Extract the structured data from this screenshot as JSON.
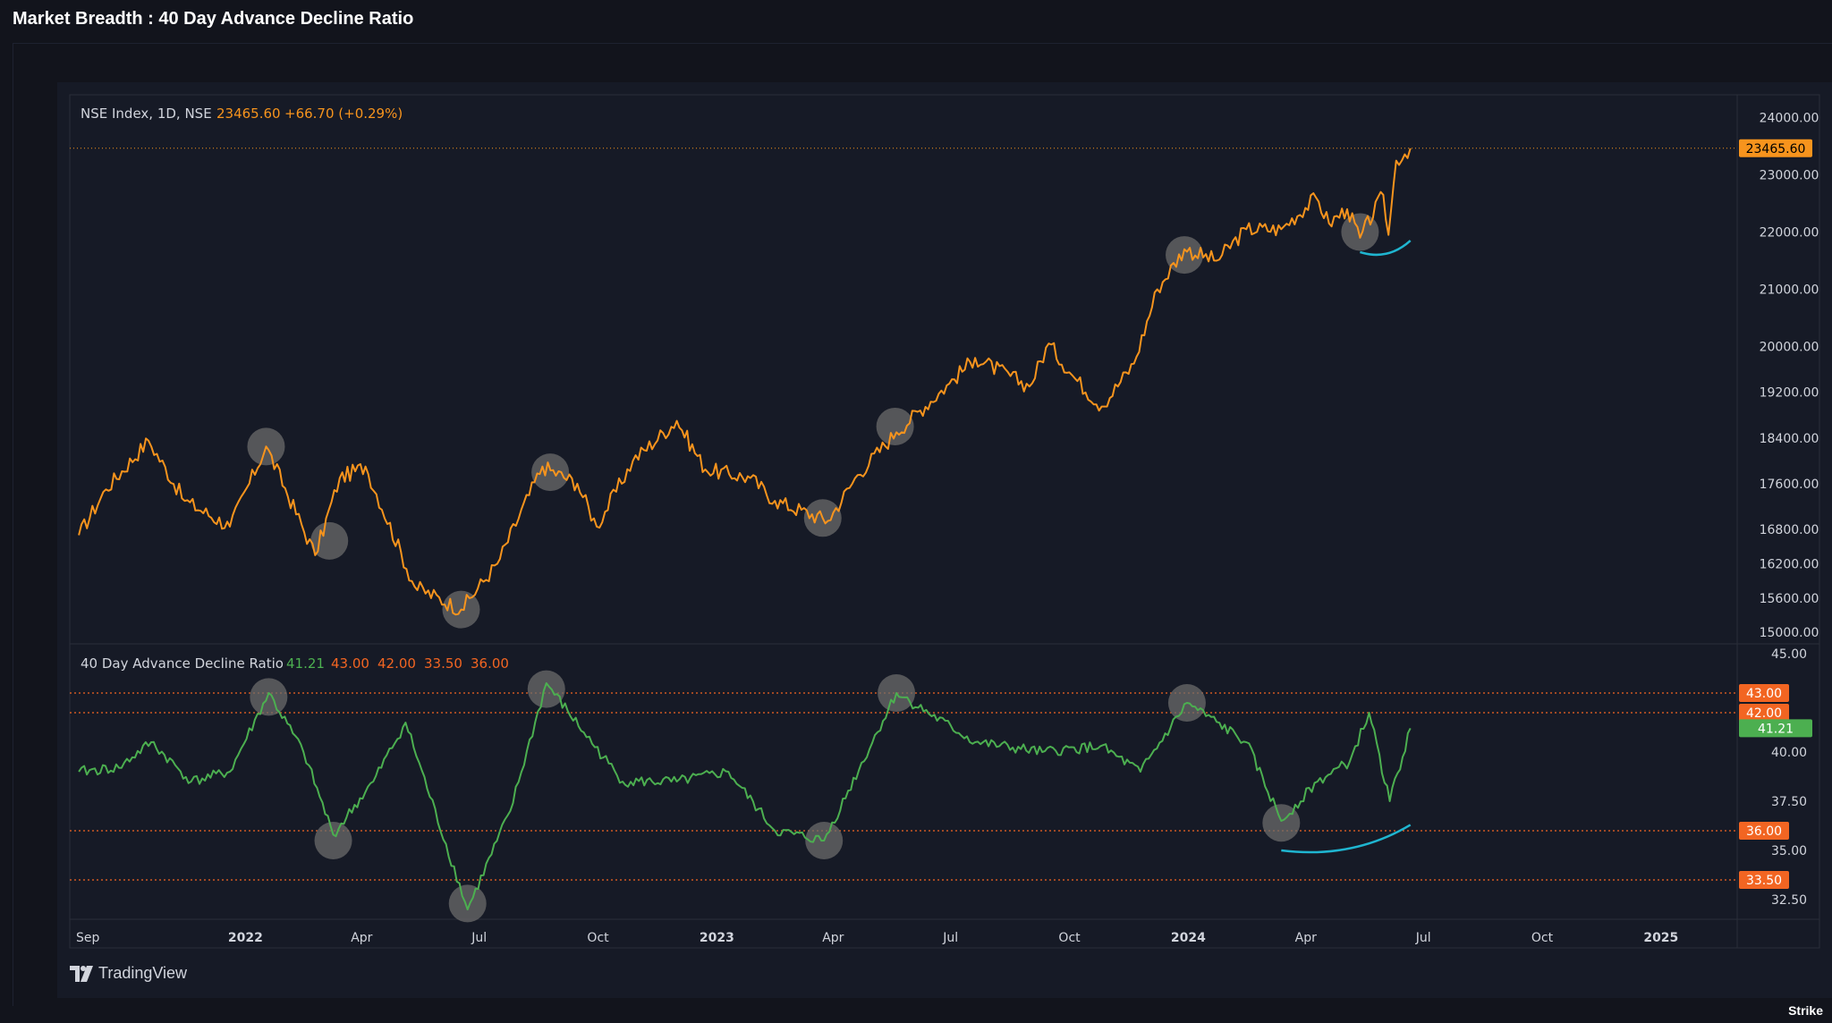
{
  "page_title": "Market Breadth : 40 Day Advance Decline Ratio",
  "brand": "TradingView",
  "corner_label": "Strike",
  "colors": {
    "background": "#161a26",
    "price_line": "#f7941d",
    "ratio_line": "#4caf50",
    "level_line": "#f26522",
    "highlight": "#6b6b6b",
    "trend_arc": "#1fb5d0",
    "grid": "#2a2e39"
  },
  "chart_data": [
    {
      "type": "line",
      "title": "NSE Index, 1D, NSE",
      "last_value": "23465.60",
      "change": "+66.70 (+0.29%)",
      "last_label": "23465.60",
      "ylim": [
        14800,
        24400
      ],
      "y_ticks": [
        "24000.00",
        "23000.00",
        "22000.00",
        "21000.00",
        "20000.00",
        "19200.00",
        "18400.00",
        "17600.00",
        "16800.00",
        "16200.00",
        "15600.00",
        "15000.00"
      ],
      "y_tick_values": [
        24000,
        23000,
        22000,
        21000,
        20000,
        19200,
        18400,
        17600,
        16800,
        16200,
        15600,
        15000
      ],
      "x_dates": [
        "2021-08-25",
        "2021-09-15",
        "2021-10-18",
        "2021-11-15",
        "2021-12-20",
        "2022-01-17",
        "2022-02-24",
        "2022-03-15",
        "2022-04-04",
        "2022-05-12",
        "2022-06-17",
        "2022-07-15",
        "2022-08-19",
        "2022-09-15",
        "2022-09-30",
        "2022-10-28",
        "2022-12-01",
        "2022-12-23",
        "2023-01-27",
        "2023-02-15",
        "2023-03-28",
        "2023-04-20",
        "2023-05-20",
        "2023-06-30",
        "2023-07-20",
        "2023-08-31",
        "2023-09-15",
        "2023-10-03",
        "2023-10-26",
        "2023-11-20",
        "2023-12-08",
        "2023-12-29",
        "2024-01-23",
        "2024-02-15",
        "2024-03-13",
        "2024-04-09",
        "2024-04-19",
        "2024-05-03",
        "2024-05-13",
        "2024-05-31",
        "2024-06-04",
        "2024-06-10",
        "2024-06-21"
      ],
      "values": [
        16700,
        17500,
        18350,
        17300,
        16850,
        18250,
        16350,
        17700,
        17900,
        15800,
        15400,
        16200,
        17900,
        17600,
        16850,
        18000,
        18700,
        17850,
        17700,
        17300,
        16950,
        17750,
        18500,
        19350,
        19800,
        19300,
        20050,
        19500,
        18950,
        19700,
        21000,
        21700,
        21500,
        22050,
        22050,
        22600,
        22150,
        22400,
        21900,
        22650,
        21950,
        23250,
        23465.6
      ],
      "series_name": "NSE Index",
      "annotation_dates": [
        "2022-01-17",
        "2022-03-07",
        "2022-06-17",
        "2022-08-25",
        "2023-03-24",
        "2023-05-19",
        "2023-12-29",
        "2024-05-13"
      ],
      "annotation_values": [
        18250,
        16600,
        15400,
        17800,
        17000,
        18600,
        21600,
        22000
      ],
      "trend_arc": {
        "x": [
          "2024-05-13",
          "2024-06-21"
        ],
        "y": [
          21650,
          21850
        ]
      }
    },
    {
      "type": "line",
      "title": "40 Day Advance Decline Ratio",
      "readouts": [
        "41.21",
        "43.00",
        "42.00",
        "33.50",
        "36.00"
      ],
      "ylim": [
        31.5,
        45.5
      ],
      "y_ticks": [
        "45.00",
        "40.00",
        "37.50",
        "35.00",
        "32.50"
      ],
      "y_tick_values": [
        45,
        40,
        37.5,
        35,
        32.5
      ],
      "levels": [
        {
          "label": "43.00",
          "value": 43
        },
        {
          "label": "42.00",
          "value": 42
        },
        {
          "label": "36.00",
          "value": 36
        },
        {
          "label": "33.50",
          "value": 33.5
        }
      ],
      "last_label": "41.21",
      "x_dates": [
        "2021-08-25",
        "2021-09-25",
        "2021-10-20",
        "2021-11-20",
        "2021-12-20",
        "2022-01-19",
        "2022-02-15",
        "2022-03-10",
        "2022-04-10",
        "2022-05-05",
        "2022-06-22",
        "2022-07-25",
        "2022-08-22",
        "2022-09-20",
        "2022-10-20",
        "2022-12-01",
        "2023-01-10",
        "2023-02-15",
        "2023-03-25",
        "2023-05-20",
        "2023-07-20",
        "2023-09-10",
        "2023-10-25",
        "2023-11-25",
        "2023-12-31",
        "2024-02-15",
        "2024-03-13",
        "2024-04-10",
        "2024-05-05",
        "2024-05-20",
        "2024-06-05",
        "2024-06-21"
      ],
      "values": [
        39.0,
        39.2,
        40.5,
        38.5,
        39.0,
        43.0,
        40.0,
        35.8,
        38.5,
        41.5,
        32.0,
        37.0,
        43.5,
        41.0,
        38.5,
        38.5,
        39.0,
        36.0,
        35.5,
        43.0,
        40.5,
        40.0,
        40.3,
        39.0,
        42.5,
        40.5,
        36.5,
        38.5,
        39.5,
        42.0,
        37.5,
        41.21
      ],
      "series_name": "40 Day Advance Decline Ratio",
      "annotation_dates": [
        "2022-01-19",
        "2022-03-10",
        "2022-06-22",
        "2022-08-22",
        "2023-03-25",
        "2023-05-20",
        "2023-12-31",
        "2024-03-13"
      ],
      "annotation_values": [
        42.8,
        35.5,
        32.3,
        43.2,
        35.5,
        43.0,
        42.5,
        36.4
      ],
      "trend_arc": {
        "x": [
          "2024-03-13",
          "2024-06-21"
        ],
        "y": [
          35.0,
          36.3
        ]
      }
    }
  ],
  "x_axis": {
    "labels": [
      "Sep",
      "2022",
      "Apr",
      "Jul",
      "Oct",
      "2023",
      "Apr",
      "Jul",
      "Oct",
      "2024",
      "Apr",
      "Jul",
      "Oct",
      "2025"
    ],
    "dates": [
      "2021-09-01",
      "2022-01-01",
      "2022-04-01",
      "2022-07-01",
      "2022-10-01",
      "2023-01-01",
      "2023-04-01",
      "2023-07-01",
      "2023-10-01",
      "2024-01-01",
      "2024-04-01",
      "2024-07-01",
      "2024-10-01",
      "2025-01-01"
    ],
    "bold": [
      false,
      true,
      false,
      false,
      false,
      true,
      false,
      false,
      false,
      true,
      false,
      false,
      false,
      true
    ]
  }
}
